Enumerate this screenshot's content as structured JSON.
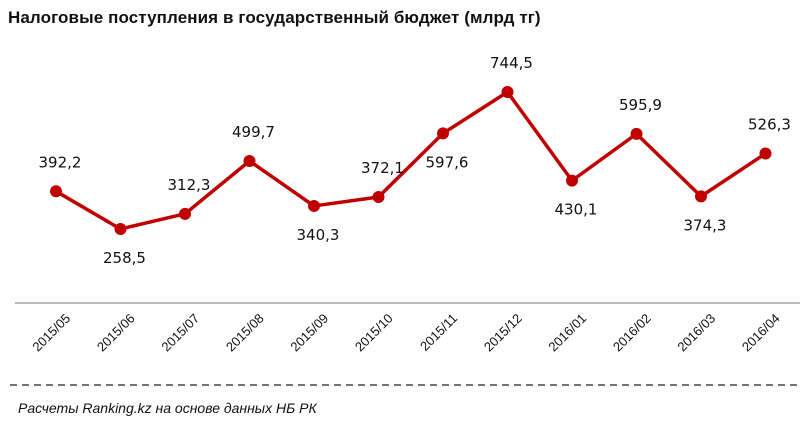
{
  "title": "Налоговые  поступления  в  государственный  бюджет (млрд тг)",
  "footer": "Расчеты Ranking.kz на основе данных  НБ РК",
  "colors": {
    "line": "#c00000",
    "axis": "#a6a6a6",
    "text": "#111111"
  },
  "chart_data": {
    "type": "line",
    "title": "Налоговые поступления в государственный бюджет (млрд тг)",
    "xlabel": "",
    "ylabel": "",
    "categories": [
      "2015/05",
      "2015/06",
      "2015/07",
      "2015/08",
      "2015/09",
      "2015/10",
      "2015/11",
      "2015/12",
      "2016/01",
      "2016/02",
      "2016/03",
      "2016/04"
    ],
    "series": [
      {
        "name": "Налоговые поступления",
        "values": [
          392.2,
          258.5,
          312.3,
          499.7,
          340.3,
          372.1,
          597.6,
          744.5,
          430.1,
          595.9,
          374.3,
          526.3
        ]
      }
    ],
    "data_labels": [
      "392,2",
      "258,5",
      "312,3",
      "499,7",
      "340,3",
      "372,1",
      "597,6",
      "744,5",
      "430,1",
      "595,9",
      "374,3",
      "526,3"
    ],
    "label_positions": [
      "above",
      "below",
      "above",
      "above",
      "below",
      "above",
      "below",
      "above",
      "below",
      "above",
      "below",
      "above"
    ],
    "grid": false,
    "legend": "none",
    "source": "Расчеты Ranking.kz на основе данных НБ РК"
  }
}
